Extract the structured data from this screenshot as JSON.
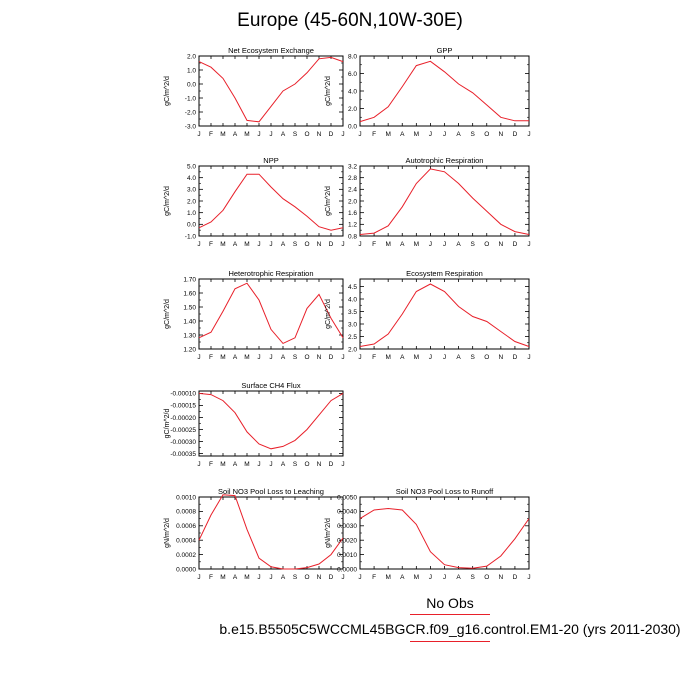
{
  "title": "Europe (45-60N,10W-30E)",
  "legend": {
    "obs_label": "No Obs",
    "obs_color": "#e8202a",
    "model_label": "b.e15.B5505C5WCCML45BGCR.f09_g16.control.EM1-20 (yrs 2011-2030)",
    "model_color": "#e8202a"
  },
  "chart_data": [
    {
      "type": "line",
      "title": "Net Ecosystem Exchange",
      "ylabel": "gC/m^2/d",
      "x": [
        "J",
        "F",
        "M",
        "A",
        "M",
        "J",
        "J",
        "A",
        "S",
        "O",
        "N",
        "D",
        "J"
      ],
      "ylim": [
        -3.0,
        2.0
      ],
      "yticks": [
        2.0,
        1.0,
        0.0,
        -1.0,
        -2.0,
        -3.0
      ],
      "ytick_labels": [
        "2.0",
        "1.0",
        "0.0",
        "-1.0",
        "-2.0",
        "-3.0"
      ],
      "series": [
        {
          "values": [
            1.6,
            1.2,
            0.4,
            -1.0,
            -2.6,
            -2.7,
            -1.6,
            -0.5,
            0.0,
            0.8,
            1.8,
            1.9,
            1.6
          ]
        }
      ]
    },
    {
      "type": "line",
      "title": "GPP",
      "ylabel": "gC/m^2/d",
      "x": [
        "J",
        "F",
        "M",
        "A",
        "M",
        "J",
        "J",
        "A",
        "S",
        "O",
        "N",
        "D",
        "J"
      ],
      "ylim": [
        0.0,
        8.0
      ],
      "yticks": [
        8.0,
        6.0,
        4.0,
        2.0,
        0.0
      ],
      "ytick_labels": [
        "8.0",
        "6.0",
        "4.0",
        "2.0",
        "0.0"
      ],
      "series": [
        {
          "values": [
            0.5,
            1.0,
            2.2,
            4.5,
            6.9,
            7.4,
            6.2,
            4.8,
            3.8,
            2.4,
            1.0,
            0.6,
            0.6
          ]
        }
      ]
    },
    {
      "type": "line",
      "title": "NPP",
      "ylabel": "gC/m^2/d",
      "x": [
        "J",
        "F",
        "M",
        "A",
        "M",
        "J",
        "J",
        "A",
        "S",
        "O",
        "N",
        "D",
        "J"
      ],
      "ylim": [
        -1.0,
        5.0
      ],
      "yticks": [
        5.0,
        4.0,
        3.0,
        2.0,
        1.0,
        0.0,
        -1.0
      ],
      "ytick_labels": [
        "5.0",
        "4.0",
        "3.0",
        "2.0",
        "1.0",
        "0.0",
        "-1.0"
      ],
      "series": [
        {
          "values": [
            -0.3,
            0.2,
            1.2,
            2.8,
            4.3,
            4.3,
            3.2,
            2.2,
            1.5,
            0.7,
            -0.2,
            -0.5,
            -0.3
          ]
        }
      ]
    },
    {
      "type": "line",
      "title": "Autotrophic Respiration",
      "ylabel": "gC/m^2/d",
      "x": [
        "J",
        "F",
        "M",
        "A",
        "M",
        "J",
        "J",
        "A",
        "S",
        "O",
        "N",
        "D",
        "J"
      ],
      "ylim": [
        0.8,
        3.2
      ],
      "yticks": [
        3.2,
        2.8,
        2.4,
        2.0,
        1.6,
        1.2,
        0.8
      ],
      "ytick_labels": [
        "3.2",
        "2.8",
        "2.4",
        "2.0",
        "1.6",
        "1.2",
        "0.8"
      ],
      "series": [
        {
          "values": [
            0.85,
            0.9,
            1.15,
            1.8,
            2.6,
            3.1,
            3.0,
            2.6,
            2.1,
            1.65,
            1.2,
            0.95,
            0.85
          ]
        }
      ]
    },
    {
      "type": "line",
      "title": "Heterotrophic Respiration",
      "ylabel": "gC/m^2/d",
      "x": [
        "J",
        "F",
        "M",
        "A",
        "M",
        "J",
        "J",
        "A",
        "S",
        "O",
        "N",
        "D",
        "J"
      ],
      "ylim": [
        1.2,
        1.7
      ],
      "yticks": [
        1.7,
        1.6,
        1.5,
        1.4,
        1.3,
        1.2
      ],
      "ytick_labels": [
        "1.70",
        "1.60",
        "1.50",
        "1.40",
        "1.30",
        "1.20"
      ],
      "series": [
        {
          "values": [
            1.28,
            1.32,
            1.47,
            1.63,
            1.67,
            1.55,
            1.34,
            1.24,
            1.28,
            1.49,
            1.59,
            1.42,
            1.28
          ]
        }
      ]
    },
    {
      "type": "line",
      "title": "Ecosystem Respiration",
      "ylabel": "gC/m^2/d",
      "x": [
        "J",
        "F",
        "M",
        "A",
        "M",
        "J",
        "J",
        "A",
        "S",
        "O",
        "N",
        "D",
        "J"
      ],
      "ylim": [
        2.0,
        4.8
      ],
      "yticks": [
        4.5,
        4.0,
        3.5,
        3.0,
        2.5,
        2.0
      ],
      "ytick_labels": [
        "4.5",
        "4.0",
        "3.5",
        "3.0",
        "2.5",
        "2.0"
      ],
      "series": [
        {
          "values": [
            2.1,
            2.2,
            2.6,
            3.4,
            4.3,
            4.6,
            4.3,
            3.7,
            3.3,
            3.1,
            2.7,
            2.3,
            2.1
          ]
        }
      ]
    },
    {
      "type": "line",
      "title": "Surface CH4 Flux",
      "ylabel": "gC/m^2/d",
      "x": [
        "J",
        "F",
        "M",
        "A",
        "M",
        "J",
        "J",
        "A",
        "S",
        "O",
        "N",
        "D",
        "J"
      ],
      "ylim": [
        -0.00036,
        -9e-05
      ],
      "yticks": [
        -0.0001,
        -0.00015,
        -0.0002,
        -0.00025,
        -0.0003,
        -0.00035
      ],
      "ytick_labels": [
        "-0.00010",
        "-0.00015",
        "-0.00020",
        "-0.00025",
        "-0.00030",
        "-0.00035"
      ],
      "series": [
        {
          "values": [
            -0.0001,
            -0.000105,
            -0.00013,
            -0.00018,
            -0.00026,
            -0.00031,
            -0.00033,
            -0.00032,
            -0.000295,
            -0.00025,
            -0.00019,
            -0.00013,
            -0.0001
          ]
        }
      ]
    },
    {
      "type": "line",
      "title": "Soil NO3 Pool Loss to Leaching",
      "ylabel": "gN/m^2/d",
      "x": [
        "J",
        "F",
        "M",
        "A",
        "M",
        "J",
        "J",
        "A",
        "S",
        "O",
        "N",
        "D",
        "J"
      ],
      "ylim": [
        0.0,
        0.001
      ],
      "yticks": [
        0.001,
        0.0008,
        0.0006,
        0.0004,
        0.0002,
        0.0
      ],
      "ytick_labels": [
        "0.0010",
        "0.0008",
        "0.0006",
        "0.0004",
        "0.0002",
        "0.0000"
      ],
      "series": [
        {
          "values": [
            0.0004,
            0.00075,
            0.00103,
            0.00102,
            0.00055,
            0.00015,
            3e-05,
            0.0,
            0.0,
            2e-05,
            7e-05,
            0.0002,
            0.00043
          ]
        }
      ]
    },
    {
      "type": "line",
      "title": "Soil NO3 Pool Loss to Runoff",
      "ylabel": "gN/m^2/d",
      "x": [
        "J",
        "F",
        "M",
        "A",
        "M",
        "J",
        "J",
        "A",
        "S",
        "O",
        "N",
        "D",
        "J"
      ],
      "ylim": [
        0.0,
        0.005
      ],
      "yticks": [
        0.005,
        0.004,
        0.003,
        0.002,
        0.001,
        0.0
      ],
      "ytick_labels": [
        "0.0050",
        "0.0040",
        "0.0030",
        "0.0020",
        "0.0010",
        "0.0000"
      ],
      "series": [
        {
          "values": [
            0.0035,
            0.0041,
            0.0042,
            0.0041,
            0.0031,
            0.0012,
            0.0003,
            0.0001,
            5e-05,
            0.0002,
            0.0009,
            0.0021,
            0.0035
          ]
        }
      ]
    }
  ]
}
